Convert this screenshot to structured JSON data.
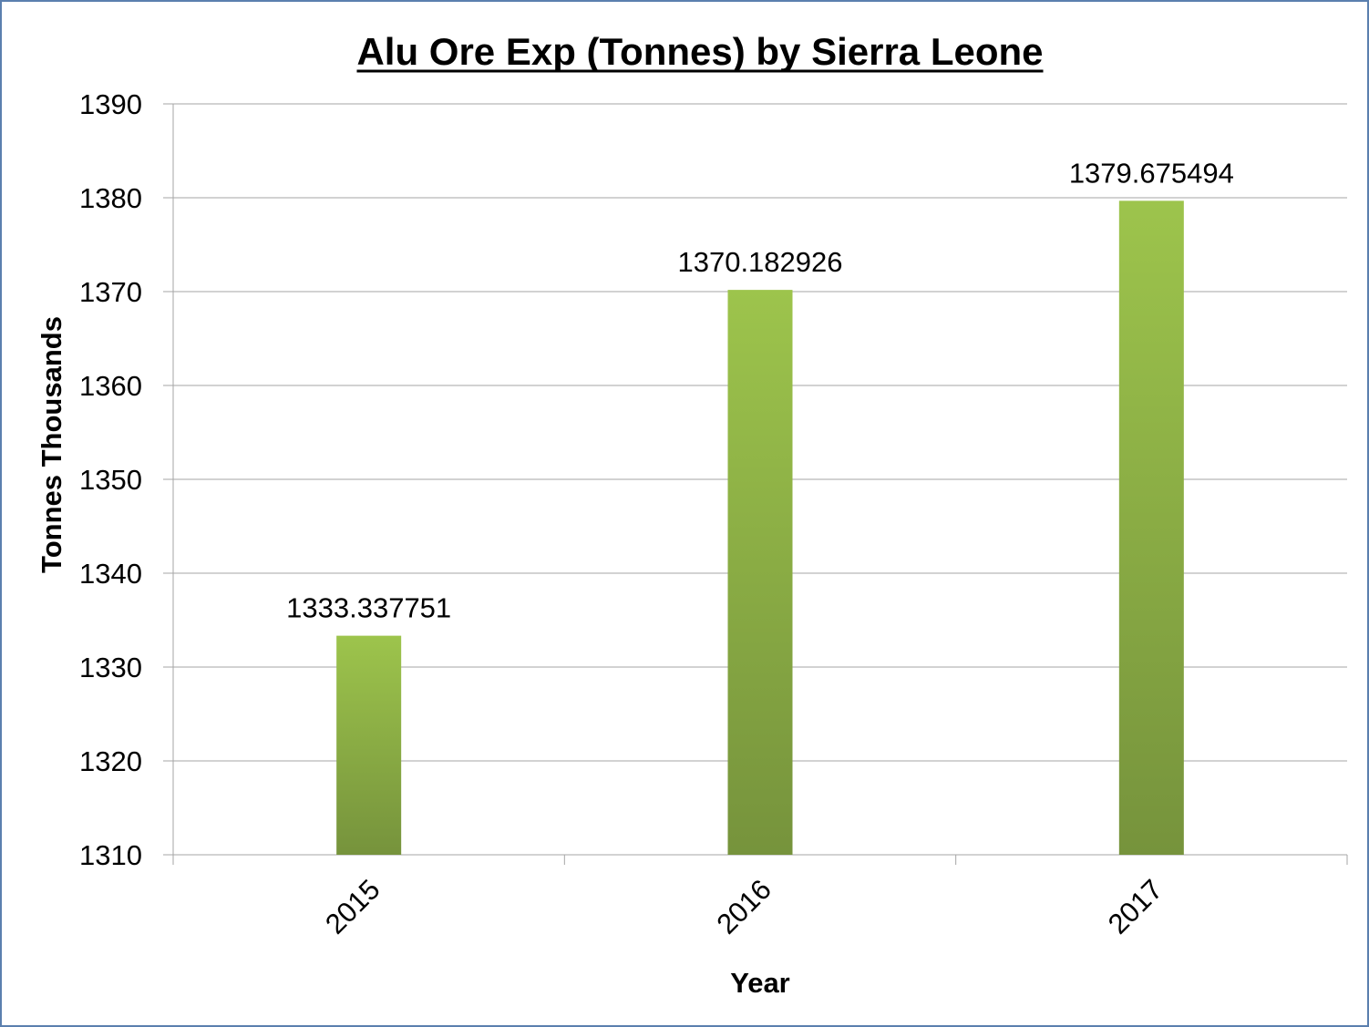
{
  "chart_data": {
    "type": "bar",
    "title": "Alu Ore Exp (Tonnes) by Sierra Leone",
    "xlabel": "Year",
    "ylabel": "Tonnes Thousands",
    "categories": [
      "2015",
      "2016",
      "2017"
    ],
    "values": [
      1333.337751,
      1370.182926,
      1379.675494
    ],
    "data_labels": [
      "1333.337751",
      "1370.182926",
      "1379.675494"
    ],
    "ylim": [
      1310,
      1390
    ],
    "yticks": [
      1310,
      1320,
      1330,
      1340,
      1350,
      1360,
      1370,
      1380,
      1390
    ],
    "grid": true,
    "legend": "none",
    "colors": {
      "bar_top": "#9dc44c",
      "bar_bottom": "#76933c",
      "grid": "#a6a6a6",
      "frame": "#5b7fae"
    }
  }
}
